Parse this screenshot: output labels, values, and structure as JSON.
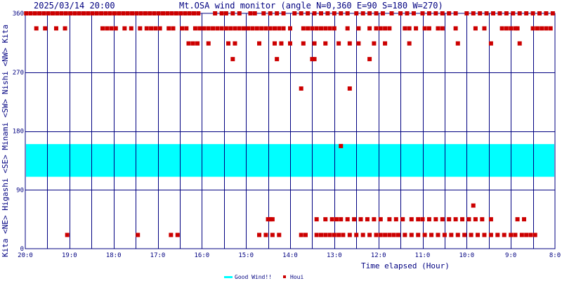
{
  "header": {
    "datetime": "2025/03/14 20:00",
    "title": "Mt.OSA wind monitor (angle N=0,360 E=90 S=180 W=270)"
  },
  "side_label": "Kita <NE> Higashi <SE> Minami <SW> Nishi <NW> Kita",
  "colors": {
    "grid": "#000080",
    "good_band": "#00ffff",
    "points": "#cc0000",
    "text": "#000080"
  },
  "chart_data": {
    "type": "scatter",
    "xlabel": "Time elapsed (Hour)",
    "x_tick_labels": [
      "20:0",
      "19:0",
      "18:0",
      "17:0",
      "16:0",
      "15:0",
      "14:0",
      "13:0",
      "12:0",
      "11:0",
      "10:0",
      "9:0",
      "8:0"
    ],
    "y_ticks": [
      0,
      90,
      180,
      270,
      360
    ],
    "ylim": [
      0,
      360
    ],
    "x_range_hours": [
      0,
      12
    ],
    "good_wind_band": [
      110,
      160
    ],
    "legend": {
      "good": "Good Wind!!",
      "points": "Houi"
    },
    "points": [
      [
        0.02,
        360
      ],
      [
        0.12,
        360
      ],
      [
        0.22,
        360
      ],
      [
        0.32,
        360
      ],
      [
        0.42,
        360
      ],
      [
        0.52,
        360
      ],
      [
        0.62,
        360
      ],
      [
        0.72,
        360
      ],
      [
        0.82,
        360
      ],
      [
        0.92,
        360
      ],
      [
        1.02,
        360
      ],
      [
        1.12,
        360
      ],
      [
        1.22,
        360
      ],
      [
        1.32,
        360
      ],
      [
        1.42,
        360
      ],
      [
        1.52,
        360
      ],
      [
        1.62,
        360
      ],
      [
        1.72,
        360
      ],
      [
        1.82,
        360
      ],
      [
        1.92,
        360
      ],
      [
        2.02,
        360
      ],
      [
        2.12,
        360
      ],
      [
        2.22,
        360
      ],
      [
        2.32,
        360
      ],
      [
        2.42,
        360
      ],
      [
        2.52,
        360
      ],
      [
        2.62,
        360
      ],
      [
        2.72,
        360
      ],
      [
        2.82,
        360
      ],
      [
        2.92,
        360
      ],
      [
        3.02,
        360
      ],
      [
        3.12,
        360
      ],
      [
        3.22,
        360
      ],
      [
        3.32,
        360
      ],
      [
        3.42,
        360
      ],
      [
        3.52,
        360
      ],
      [
        3.62,
        360
      ],
      [
        3.72,
        360
      ],
      [
        3.82,
        360
      ],
      [
        3.92,
        360
      ],
      [
        4.3,
        360
      ],
      [
        4.45,
        360
      ],
      [
        4.55,
        360
      ],
      [
        4.7,
        360
      ],
      [
        4.85,
        360
      ],
      [
        5.1,
        360
      ],
      [
        5.2,
        360
      ],
      [
        5.4,
        360
      ],
      [
        5.55,
        360
      ],
      [
        5.7,
        360
      ],
      [
        5.85,
        360
      ],
      [
        6.1,
        360
      ],
      [
        6.25,
        360
      ],
      [
        6.4,
        360
      ],
      [
        6.55,
        360
      ],
      [
        6.7,
        360
      ],
      [
        6.85,
        360
      ],
      [
        7.0,
        360
      ],
      [
        7.15,
        360
      ],
      [
        7.3,
        360
      ],
      [
        7.5,
        360
      ],
      [
        7.65,
        360
      ],
      [
        7.8,
        360
      ],
      [
        7.95,
        360
      ],
      [
        8.1,
        360
      ],
      [
        8.3,
        360
      ],
      [
        8.5,
        360
      ],
      [
        8.65,
        360
      ],
      [
        8.8,
        360
      ],
      [
        9.0,
        360
      ],
      [
        9.15,
        360
      ],
      [
        9.3,
        360
      ],
      [
        9.45,
        360
      ],
      [
        9.6,
        360
      ],
      [
        9.75,
        360
      ],
      [
        10.0,
        360
      ],
      [
        10.15,
        360
      ],
      [
        10.3,
        360
      ],
      [
        10.45,
        360
      ],
      [
        10.6,
        360
      ],
      [
        10.75,
        360
      ],
      [
        10.9,
        360
      ],
      [
        11.05,
        360
      ],
      [
        11.2,
        360
      ],
      [
        11.35,
        360
      ],
      [
        11.5,
        360
      ],
      [
        11.65,
        360
      ],
      [
        11.8,
        360
      ],
      [
        11.95,
        360
      ],
      [
        0.25,
        337
      ],
      [
        0.45,
        337
      ],
      [
        0.7,
        337
      ],
      [
        0.9,
        337
      ],
      [
        1.75,
        337
      ],
      [
        1.85,
        337
      ],
      [
        1.95,
        337
      ],
      [
        2.05,
        337
      ],
      [
        2.25,
        337
      ],
      [
        2.4,
        337
      ],
      [
        2.6,
        337
      ],
      [
        2.75,
        337
      ],
      [
        2.85,
        337
      ],
      [
        2.95,
        337
      ],
      [
        3.05,
        337
      ],
      [
        3.25,
        337
      ],
      [
        3.35,
        337
      ],
      [
        3.55,
        337
      ],
      [
        3.65,
        337
      ],
      [
        3.85,
        337
      ],
      [
        3.95,
        337
      ],
      [
        4.05,
        337
      ],
      [
        4.15,
        337
      ],
      [
        4.25,
        337
      ],
      [
        4.35,
        337
      ],
      [
        4.45,
        337
      ],
      [
        4.55,
        337
      ],
      [
        4.65,
        337
      ],
      [
        4.75,
        337
      ],
      [
        4.85,
        337
      ],
      [
        4.95,
        337
      ],
      [
        5.05,
        337
      ],
      [
        5.15,
        337
      ],
      [
        5.25,
        337
      ],
      [
        5.35,
        337
      ],
      [
        5.45,
        337
      ],
      [
        5.55,
        337
      ],
      [
        5.65,
        337
      ],
      [
        5.75,
        337
      ],
      [
        5.85,
        337
      ],
      [
        6.0,
        337
      ],
      [
        6.3,
        337
      ],
      [
        6.4,
        337
      ],
      [
        6.5,
        337
      ],
      [
        6.6,
        337
      ],
      [
        6.7,
        337
      ],
      [
        6.8,
        337
      ],
      [
        6.9,
        337
      ],
      [
        7.0,
        337
      ],
      [
        7.3,
        337
      ],
      [
        7.55,
        337
      ],
      [
        7.8,
        337
      ],
      [
        7.95,
        337
      ],
      [
        8.05,
        337
      ],
      [
        8.15,
        337
      ],
      [
        8.25,
        337
      ],
      [
        8.6,
        337
      ],
      [
        8.7,
        337
      ],
      [
        8.85,
        337
      ],
      [
        9.05,
        337
      ],
      [
        9.15,
        337
      ],
      [
        9.35,
        337
      ],
      [
        9.45,
        337
      ],
      [
        9.75,
        337
      ],
      [
        10.2,
        337
      ],
      [
        10.4,
        337
      ],
      [
        10.8,
        337
      ],
      [
        10.9,
        337
      ],
      [
        11.0,
        337
      ],
      [
        11.1,
        337
      ],
      [
        11.15,
        337
      ],
      [
        11.5,
        337
      ],
      [
        11.6,
        337
      ],
      [
        11.7,
        337
      ],
      [
        11.8,
        337
      ],
      [
        11.9,
        337
      ],
      [
        3.7,
        314
      ],
      [
        3.8,
        314
      ],
      [
        3.9,
        314
      ],
      [
        4.15,
        314
      ],
      [
        4.6,
        314
      ],
      [
        4.75,
        314
      ],
      [
        5.3,
        314
      ],
      [
        5.65,
        314
      ],
      [
        5.8,
        314
      ],
      [
        6.0,
        314
      ],
      [
        6.3,
        314
      ],
      [
        6.55,
        314
      ],
      [
        6.8,
        314
      ],
      [
        7.1,
        314
      ],
      [
        7.35,
        314
      ],
      [
        7.55,
        314
      ],
      [
        7.9,
        314
      ],
      [
        8.15,
        314
      ],
      [
        8.7,
        314
      ],
      [
        9.8,
        314
      ],
      [
        10.55,
        314
      ],
      [
        11.2,
        314
      ],
      [
        4.7,
        290
      ],
      [
        5.7,
        290
      ],
      [
        6.5,
        290
      ],
      [
        6.55,
        290
      ],
      [
        7.8,
        290
      ],
      [
        6.25,
        245
      ],
      [
        7.35,
        245
      ],
      [
        7.15,
        157
      ],
      [
        10.15,
        66
      ],
      [
        5.5,
        45
      ],
      [
        5.55,
        45
      ],
      [
        5.6,
        45
      ],
      [
        6.6,
        45
      ],
      [
        6.8,
        45
      ],
      [
        6.95,
        45
      ],
      [
        7.05,
        45
      ],
      [
        7.15,
        45
      ],
      [
        7.3,
        45
      ],
      [
        7.45,
        45
      ],
      [
        7.6,
        45
      ],
      [
        7.75,
        45
      ],
      [
        7.9,
        45
      ],
      [
        8.05,
        45
      ],
      [
        8.25,
        45
      ],
      [
        8.4,
        45
      ],
      [
        8.55,
        45
      ],
      [
        8.75,
        45
      ],
      [
        8.9,
        45
      ],
      [
        9.0,
        45
      ],
      [
        9.15,
        45
      ],
      [
        9.3,
        45
      ],
      [
        9.45,
        45
      ],
      [
        9.6,
        45
      ],
      [
        9.75,
        45
      ],
      [
        9.9,
        45
      ],
      [
        10.05,
        45
      ],
      [
        10.2,
        45
      ],
      [
        10.35,
        45
      ],
      [
        10.55,
        45
      ],
      [
        11.15,
        45
      ],
      [
        11.3,
        45
      ],
      [
        0.95,
        21
      ],
      [
        2.55,
        21
      ],
      [
        3.3,
        21
      ],
      [
        3.45,
        21
      ],
      [
        5.3,
        21
      ],
      [
        5.45,
        21
      ],
      [
        5.6,
        21
      ],
      [
        5.75,
        21
      ],
      [
        6.25,
        21
      ],
      [
        6.35,
        21
      ],
      [
        6.6,
        21
      ],
      [
        6.7,
        21
      ],
      [
        6.8,
        21
      ],
      [
        6.9,
        21
      ],
      [
        7.0,
        21
      ],
      [
        7.1,
        21
      ],
      [
        7.2,
        21
      ],
      [
        7.35,
        21
      ],
      [
        7.5,
        21
      ],
      [
        7.65,
        21
      ],
      [
        7.8,
        21
      ],
      [
        7.95,
        21
      ],
      [
        8.05,
        21
      ],
      [
        8.15,
        21
      ],
      [
        8.25,
        21
      ],
      [
        8.35,
        21
      ],
      [
        8.45,
        21
      ],
      [
        8.6,
        21
      ],
      [
        8.75,
        21
      ],
      [
        8.9,
        21
      ],
      [
        9.05,
        21
      ],
      [
        9.2,
        21
      ],
      [
        9.35,
        21
      ],
      [
        9.5,
        21
      ],
      [
        9.65,
        21
      ],
      [
        9.8,
        21
      ],
      [
        9.95,
        21
      ],
      [
        10.1,
        21
      ],
      [
        10.25,
        21
      ],
      [
        10.4,
        21
      ],
      [
        10.55,
        21
      ],
      [
        10.7,
        21
      ],
      [
        10.85,
        21
      ],
      [
        11.0,
        21
      ],
      [
        11.1,
        21
      ],
      [
        11.25,
        21
      ],
      [
        11.35,
        21
      ],
      [
        11.45,
        21
      ],
      [
        11.55,
        21
      ]
    ]
  }
}
